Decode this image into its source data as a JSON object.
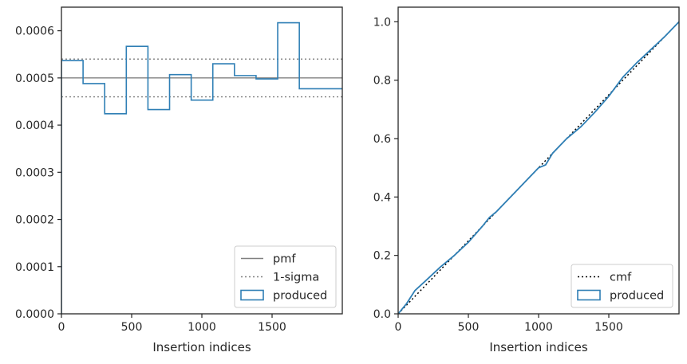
{
  "chart_data": [
    {
      "type": "step",
      "xlabel": "Insertion indices",
      "ylabel": "",
      "xlim": [
        0,
        2000
      ],
      "ylim": [
        0,
        0.00065
      ],
      "x_ticks": [
        0,
        500,
        1000,
        1500
      ],
      "x_tick_labels": [
        "0",
        "500",
        "1000",
        "1500"
      ],
      "y_ticks": [
        0,
        0.0001,
        0.0002,
        0.0003,
        0.0004,
        0.0005,
        0.0006
      ],
      "y_tick_labels": [
        "0.0000",
        "0.0001",
        "0.0002",
        "0.0003",
        "0.0004",
        "0.0005",
        "0.0006"
      ],
      "legend_position": "lower right",
      "series": [
        {
          "name": "pmf",
          "kind": "hline",
          "style": "solid",
          "color": "#808080",
          "y": 0.0005
        },
        {
          "name": "1-sigma",
          "kind": "hlines",
          "style": "dotted",
          "color": "#808080",
          "y": [
            0.00054,
            0.00046
          ]
        },
        {
          "name": "produced",
          "kind": "histogram-step",
          "color": "#2f7fb5",
          "bin_edges": [
            0,
            154,
            308,
            462,
            616,
            770,
            924,
            1078,
            1232,
            1386,
            1540,
            1694,
            2000
          ],
          "values": [
            0.000537,
            0.000488,
            0.000424,
            0.000567,
            0.000433,
            0.000507,
            0.000453,
            0.00053,
            0.000505,
            0.000498,
            0.000617,
            0.000477
          ]
        }
      ]
    },
    {
      "type": "line",
      "xlabel": "Insertion indices",
      "ylabel": "",
      "xlim": [
        0,
        2000
      ],
      "ylim": [
        0,
        1.05
      ],
      "x_ticks": [
        0,
        500,
        1000,
        1500
      ],
      "x_tick_labels": [
        "0",
        "500",
        "1000",
        "1500"
      ],
      "y_ticks": [
        0,
        0.2,
        0.4,
        0.6,
        0.8,
        1.0
      ],
      "y_tick_labels": [
        "0.0",
        "0.2",
        "0.4",
        "0.6",
        "0.8",
        "1.0"
      ],
      "legend_position": "lower right",
      "series": [
        {
          "name": "cmf",
          "style": "dotted",
          "color": "#000000",
          "x": [
            0,
            2000
          ],
          "y": [
            0,
            1.0
          ]
        },
        {
          "name": "produced",
          "style": "solid",
          "color": "#2f7fb5",
          "x": [
            0,
            60,
            120,
            200,
            300,
            400,
            500,
            600,
            650,
            700,
            800,
            900,
            1000,
            1050,
            1100,
            1200,
            1300,
            1400,
            1500,
            1600,
            1700,
            1800,
            1900,
            2000
          ],
          "y": [
            0,
            0.035,
            0.08,
            0.115,
            0.16,
            0.2,
            0.245,
            0.3,
            0.33,
            0.35,
            0.4,
            0.45,
            0.5,
            0.51,
            0.55,
            0.6,
            0.64,
            0.69,
            0.745,
            0.81,
            0.86,
            0.905,
            0.95,
            1.0
          ]
        }
      ]
    }
  ]
}
